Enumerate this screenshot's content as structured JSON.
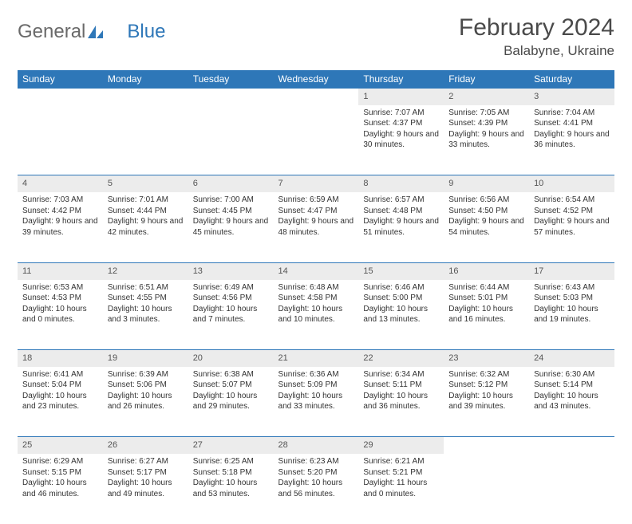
{
  "brand": {
    "part1": "General",
    "part2": "Blue",
    "logo_color": "#2e77b8",
    "logo_gray": "#6a6a6a"
  },
  "title": "February 2024",
  "location": "Balabyne, Ukraine",
  "header_bg": "#2e77b8",
  "daynum_bg": "#ececec",
  "days": [
    "Sunday",
    "Monday",
    "Tuesday",
    "Wednesday",
    "Thursday",
    "Friday",
    "Saturday"
  ],
  "weeks": [
    [
      null,
      null,
      null,
      null,
      {
        "n": "1",
        "sr": "7:07 AM",
        "ss": "4:37 PM",
        "dl": "9 hours and 30 minutes."
      },
      {
        "n": "2",
        "sr": "7:05 AM",
        "ss": "4:39 PM",
        "dl": "9 hours and 33 minutes."
      },
      {
        "n": "3",
        "sr": "7:04 AM",
        "ss": "4:41 PM",
        "dl": "9 hours and 36 minutes."
      }
    ],
    [
      {
        "n": "4",
        "sr": "7:03 AM",
        "ss": "4:42 PM",
        "dl": "9 hours and 39 minutes."
      },
      {
        "n": "5",
        "sr": "7:01 AM",
        "ss": "4:44 PM",
        "dl": "9 hours and 42 minutes."
      },
      {
        "n": "6",
        "sr": "7:00 AM",
        "ss": "4:45 PM",
        "dl": "9 hours and 45 minutes."
      },
      {
        "n": "7",
        "sr": "6:59 AM",
        "ss": "4:47 PM",
        "dl": "9 hours and 48 minutes."
      },
      {
        "n": "8",
        "sr": "6:57 AM",
        "ss": "4:48 PM",
        "dl": "9 hours and 51 minutes."
      },
      {
        "n": "9",
        "sr": "6:56 AM",
        "ss": "4:50 PM",
        "dl": "9 hours and 54 minutes."
      },
      {
        "n": "10",
        "sr": "6:54 AM",
        "ss": "4:52 PM",
        "dl": "9 hours and 57 minutes."
      }
    ],
    [
      {
        "n": "11",
        "sr": "6:53 AM",
        "ss": "4:53 PM",
        "dl": "10 hours and 0 minutes."
      },
      {
        "n": "12",
        "sr": "6:51 AM",
        "ss": "4:55 PM",
        "dl": "10 hours and 3 minutes."
      },
      {
        "n": "13",
        "sr": "6:49 AM",
        "ss": "4:56 PM",
        "dl": "10 hours and 7 minutes."
      },
      {
        "n": "14",
        "sr": "6:48 AM",
        "ss": "4:58 PM",
        "dl": "10 hours and 10 minutes."
      },
      {
        "n": "15",
        "sr": "6:46 AM",
        "ss": "5:00 PM",
        "dl": "10 hours and 13 minutes."
      },
      {
        "n": "16",
        "sr": "6:44 AM",
        "ss": "5:01 PM",
        "dl": "10 hours and 16 minutes."
      },
      {
        "n": "17",
        "sr": "6:43 AM",
        "ss": "5:03 PM",
        "dl": "10 hours and 19 minutes."
      }
    ],
    [
      {
        "n": "18",
        "sr": "6:41 AM",
        "ss": "5:04 PM",
        "dl": "10 hours and 23 minutes."
      },
      {
        "n": "19",
        "sr": "6:39 AM",
        "ss": "5:06 PM",
        "dl": "10 hours and 26 minutes."
      },
      {
        "n": "20",
        "sr": "6:38 AM",
        "ss": "5:07 PM",
        "dl": "10 hours and 29 minutes."
      },
      {
        "n": "21",
        "sr": "6:36 AM",
        "ss": "5:09 PM",
        "dl": "10 hours and 33 minutes."
      },
      {
        "n": "22",
        "sr": "6:34 AM",
        "ss": "5:11 PM",
        "dl": "10 hours and 36 minutes."
      },
      {
        "n": "23",
        "sr": "6:32 AM",
        "ss": "5:12 PM",
        "dl": "10 hours and 39 minutes."
      },
      {
        "n": "24",
        "sr": "6:30 AM",
        "ss": "5:14 PM",
        "dl": "10 hours and 43 minutes."
      }
    ],
    [
      {
        "n": "25",
        "sr": "6:29 AM",
        "ss": "5:15 PM",
        "dl": "10 hours and 46 minutes."
      },
      {
        "n": "26",
        "sr": "6:27 AM",
        "ss": "5:17 PM",
        "dl": "10 hours and 49 minutes."
      },
      {
        "n": "27",
        "sr": "6:25 AM",
        "ss": "5:18 PM",
        "dl": "10 hours and 53 minutes."
      },
      {
        "n": "28",
        "sr": "6:23 AM",
        "ss": "5:20 PM",
        "dl": "10 hours and 56 minutes."
      },
      {
        "n": "29",
        "sr": "6:21 AM",
        "ss": "5:21 PM",
        "dl": "11 hours and 0 minutes."
      },
      null,
      null
    ]
  ],
  "labels": {
    "sunrise": "Sunrise: ",
    "sunset": "Sunset: ",
    "daylight": "Daylight: "
  }
}
